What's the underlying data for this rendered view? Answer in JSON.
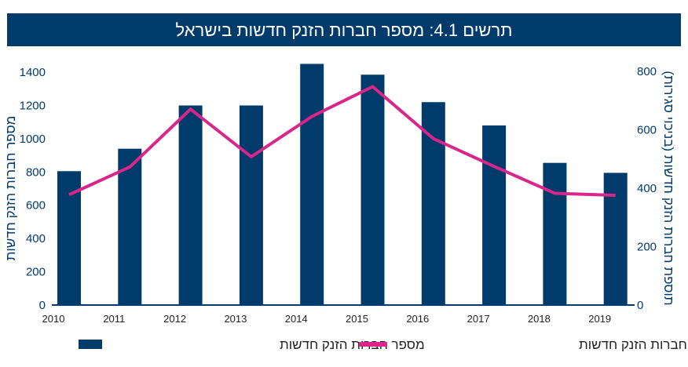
{
  "chart_data": {
    "type": "bar+line",
    "title": "תרשים 4.1: מספר חברות הזנק חדשות בישראל",
    "categories": [
      "2010",
      "2011",
      "2012",
      "2013",
      "2014",
      "2015",
      "2016",
      "2017",
      "2018",
      "2019"
    ],
    "series": [
      {
        "name": "מספר חברות הזנק חדשות",
        "type": "bar",
        "axis": "left",
        "color": "#003b6b",
        "values": [
          800,
          935,
          1195,
          1195,
          1445,
          1380,
          1215,
          1075,
          850,
          790
        ]
      },
      {
        "name": "תוספת חברות הזנק חדשות",
        "type": "line",
        "axis": "right",
        "color": "#d9268a",
        "values": [
          375,
          470,
          668,
          505,
          643,
          745,
          567,
          472,
          380,
          373
        ]
      }
    ],
    "ylabel_left": "מספר חברות הזנק חדשות",
    "ylabel_right": "תוספת חברות הזנק חדשות (בניכוי סגירות)",
    "ylim_left": [
      0,
      1400
    ],
    "yticks_left": [
      "0",
      "200",
      "400",
      "600",
      "800",
      "1000",
      "1200",
      "1400"
    ],
    "ylim_right": [
      0,
      800
    ],
    "yticks_right": [
      "0",
      "200",
      "400",
      "600",
      "800"
    ],
    "grid": false,
    "legend_position": "bottom"
  }
}
